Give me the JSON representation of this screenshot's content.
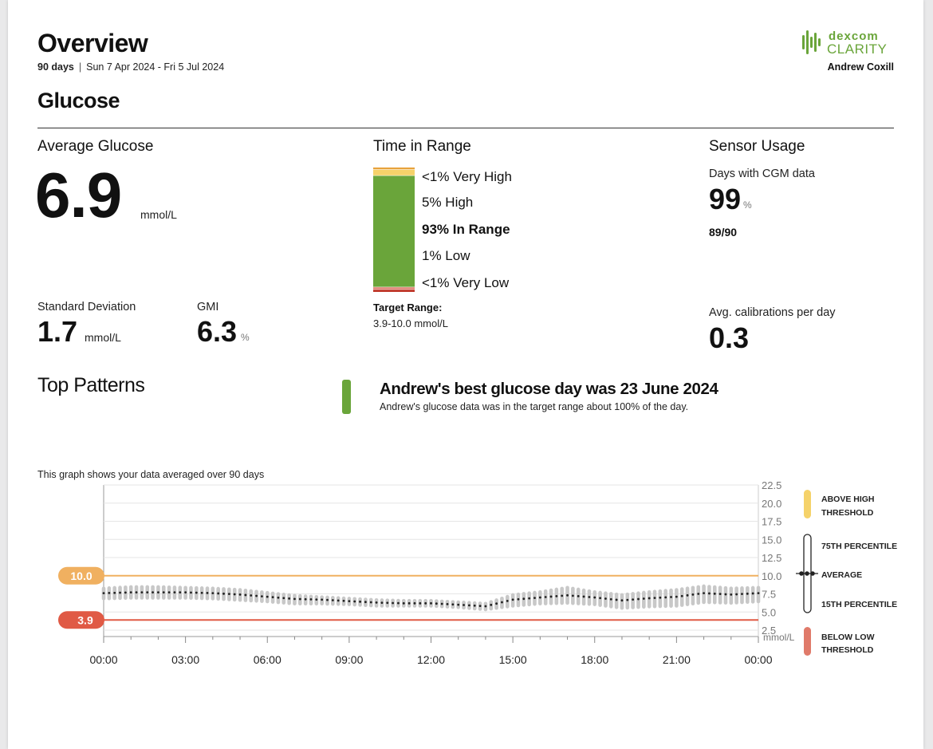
{
  "header": {
    "title": "Overview",
    "days": "90 days",
    "date_range": "Sun 7 Apr 2024 - Fri 5 Jul 2024",
    "section_title": "Glucose",
    "brand_line1": "dexcom",
    "brand_line2": "CLARITY",
    "user_name": "Andrew Coxill"
  },
  "average_glucose": {
    "label": "Average Glucose",
    "value": "6.9",
    "unit": "mmol/L",
    "sd_label": "Standard Deviation",
    "sd_value": "1.7",
    "sd_unit": "mmol/L",
    "gmi_label": "GMI",
    "gmi_value": "6.3",
    "gmi_unit": "%"
  },
  "time_in_range": {
    "label": "Time in Range",
    "rows": [
      {
        "text": "<1% Very High",
        "bold": false
      },
      {
        "text": "5% High",
        "bold": false
      },
      {
        "text": "93% In Range",
        "bold": true
      },
      {
        "text": "1% Low",
        "bold": false
      },
      {
        "text": "<1% Very Low",
        "bold": false
      }
    ],
    "segments_percent": {
      "very_high": 0.5,
      "high": 5,
      "in_range": 93,
      "low": 1,
      "very_low": 0.5
    },
    "target_title": "Target Range:",
    "target_value": "3.9-10.0 mmol/L"
  },
  "sensor_usage": {
    "label": "Sensor Usage",
    "days_label": "Days with CGM data",
    "days_value": "99",
    "days_unit": "%",
    "days_fraction": "89/90",
    "calib_label": "Avg. calibrations per day",
    "calib_value": "0.3"
  },
  "top_patterns": {
    "label": "Top Patterns",
    "headline": "Andrew's best glucose day was 23 June 2024",
    "detail": "Andrew's glucose data was in the target range about 100% of the day."
  },
  "colors": {
    "in_range": "#6aa53a",
    "high": "#f5d26a",
    "very_high": "#e8a23a",
    "low": "#e07a6a",
    "very_low": "#c0392b",
    "high_line": "#f0b060",
    "low_line": "#e05a45",
    "band": "#c8c8c8"
  },
  "chart_data": {
    "type": "line",
    "caption": "This graph shows your data averaged over 90 days",
    "x_ticks": [
      "00:00",
      "03:00",
      "06:00",
      "09:00",
      "12:00",
      "15:00",
      "18:00",
      "21:00",
      "00:00"
    ],
    "y_ticks": [
      "22.5",
      "20.0",
      "17.5",
      "15.0",
      "12.5",
      "10.0",
      "7.5",
      "5.0",
      "2.5"
    ],
    "ylim": [
      2.5,
      22.5
    ],
    "xlim_hours": [
      0,
      24
    ],
    "y_unit": "mmol/L",
    "high_threshold": {
      "value": 10.0,
      "label": "10.0"
    },
    "low_threshold": {
      "value": 3.9,
      "label": "3.9"
    },
    "series": [
      {
        "name": "Average",
        "hours": [
          0,
          1,
          2,
          3,
          4,
          5,
          6,
          7,
          8,
          9,
          10,
          11,
          12,
          13,
          14,
          15,
          16,
          17,
          18,
          19,
          20,
          21,
          22,
          23,
          24
        ],
        "values": [
          7.6,
          7.7,
          7.7,
          7.7,
          7.6,
          7.4,
          7.1,
          6.8,
          6.7,
          6.5,
          6.3,
          6.2,
          6.2,
          6.0,
          5.8,
          6.7,
          7.0,
          7.3,
          7.0,
          6.6,
          6.9,
          7.1,
          7.6,
          7.4,
          7.6
        ]
      },
      {
        "name": "75th Percentile",
        "hours": [
          0,
          1,
          2,
          3,
          4,
          5,
          6,
          7,
          8,
          9,
          10,
          11,
          12,
          13,
          14,
          15,
          16,
          17,
          18,
          19,
          20,
          21,
          22,
          23,
          24
        ],
        "values": [
          8.5,
          8.7,
          8.7,
          8.6,
          8.5,
          8.3,
          7.9,
          7.5,
          7.3,
          7.1,
          6.9,
          6.8,
          6.8,
          6.6,
          6.4,
          7.6,
          8.0,
          8.6,
          8.0,
          7.6,
          8.0,
          8.3,
          8.8,
          8.5,
          8.6
        ]
      },
      {
        "name": "15th Percentile",
        "hours": [
          0,
          1,
          2,
          3,
          4,
          5,
          6,
          7,
          8,
          9,
          10,
          11,
          12,
          13,
          14,
          15,
          16,
          17,
          18,
          19,
          20,
          21,
          22,
          23,
          24
        ],
        "values": [
          6.6,
          6.7,
          6.7,
          6.7,
          6.6,
          6.4,
          6.2,
          5.9,
          5.9,
          5.8,
          5.6,
          5.6,
          5.6,
          5.4,
          5.1,
          5.6,
          5.9,
          6.0,
          5.8,
          5.3,
          5.5,
          5.6,
          6.1,
          6.0,
          6.2
        ]
      }
    ],
    "legend": [
      {
        "id": "above",
        "line1": "ABOVE HIGH",
        "line2": "THRESHOLD"
      },
      {
        "id": "p75",
        "line1": "75TH PERCENTILE",
        "line2": ""
      },
      {
        "id": "avg",
        "line1": "AVERAGE",
        "line2": ""
      },
      {
        "id": "p15",
        "line1": "15TH PERCENTILE",
        "line2": ""
      },
      {
        "id": "below",
        "line1": "BELOW LOW",
        "line2": "THRESHOLD"
      }
    ]
  }
}
